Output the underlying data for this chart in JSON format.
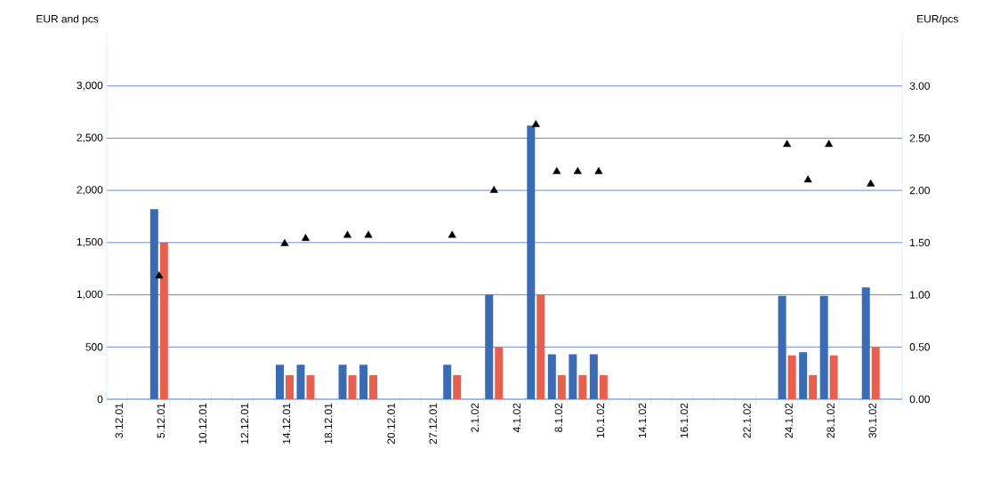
{
  "chart_data": {
    "type": "bar",
    "ylabel": "EUR and pcs",
    "y2label": "EUR/pcs",
    "categories": [
      "3.12.01",
      null,
      "5.12.01",
      null,
      "10.12.01",
      null,
      "12.12.01",
      null,
      "14.12.01",
      null,
      "18.12.01",
      null,
      null,
      "20.12.01",
      null,
      "27.12.01",
      null,
      "2.1.02",
      null,
      "4.1.02",
      null,
      "8.1.02",
      null,
      "10.1.02",
      null,
      "14.1.02",
      null,
      "16.1.02",
      null,
      null,
      "22.1.02",
      null,
      "24.1.02",
      null,
      "28.1.02",
      null,
      "30.1.02",
      null
    ],
    "ylim": [
      0,
      3500
    ],
    "yticks": [
      0,
      500,
      {
        "value": 1000,
        "label": "1,000"
      },
      {
        "value": 1500,
        "label": "1,500"
      },
      {
        "value": 2000,
        "label": "2,000"
      },
      {
        "value": 2500,
        "label": "2,500"
      },
      {
        "value": 3000,
        "label": "3,000"
      }
    ],
    "y2lim": [
      0,
      3.5
    ],
    "y2ticks": [
      {
        "value": 0,
        "label": "0.00"
      },
      {
        "value": 0.5,
        "label": "0.50"
      },
      {
        "value": 1,
        "label": "1.00"
      },
      {
        "value": 1.5,
        "label": "1.50"
      },
      {
        "value": 2,
        "label": "2.00"
      },
      {
        "value": 2.5,
        "label": "2.50"
      },
      {
        "value": 3,
        "label": "3.00"
      }
    ],
    "grid": "y",
    "series": [
      {
        "color": "#3b6cb3",
        "values": [
          null,
          null,
          1820,
          null,
          null,
          null,
          null,
          null,
          330,
          330,
          null,
          330,
          330,
          null,
          null,
          null,
          330,
          null,
          1000,
          null,
          2620,
          430,
          430,
          430,
          null,
          null,
          null,
          null,
          null,
          null,
          null,
          null,
          990,
          450,
          990,
          null,
          1070,
          null
        ]
      },
      {
        "color": "#e5604e",
        "values": [
          null,
          null,
          1500,
          null,
          null,
          null,
          null,
          null,
          230,
          230,
          null,
          230,
          230,
          null,
          null,
          null,
          230,
          null,
          500,
          null,
          1000,
          230,
          230,
          230,
          null,
          null,
          null,
          null,
          null,
          null,
          null,
          null,
          420,
          230,
          420,
          null,
          500,
          null
        ]
      },
      {
        "type": "scatter",
        "axis": "y2",
        "marker": "triangle",
        "color": "#000000",
        "values": [
          null,
          null,
          1.18,
          null,
          null,
          null,
          null,
          null,
          1.49,
          1.54,
          null,
          1.57,
          1.57,
          null,
          null,
          null,
          1.57,
          null,
          2.0,
          null,
          2.63,
          2.18,
          2.18,
          2.18,
          null,
          null,
          null,
          null,
          null,
          null,
          null,
          null,
          2.44,
          2.1,
          2.44,
          null,
          2.06,
          null
        ]
      }
    ]
  }
}
